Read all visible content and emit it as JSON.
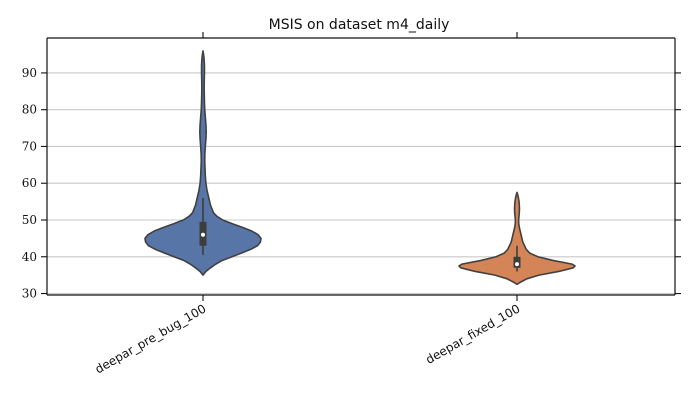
{
  "chart_data": {
    "type": "violin",
    "title": "MSIS on dataset m4_daily",
    "xlabel": "",
    "ylabel": "",
    "ylim": [
      29.6,
      99.5
    ],
    "yticks": [
      30,
      40,
      50,
      60,
      70,
      80,
      90
    ],
    "grid": "horizontal",
    "categories": [
      "deepar_pre_bug_100",
      "deepar_fixed_100"
    ],
    "series": [
      {
        "category": "deepar_pre_bug_100",
        "color": "#5875a8",
        "edge_color": "#404040",
        "range": [
          35,
          96
        ],
        "whisker": [
          40.5,
          56
        ],
        "box": [
          43,
          49.5
        ],
        "median": 46,
        "density": [
          [
            35,
            0.0
          ],
          [
            36,
            0.05
          ],
          [
            37,
            0.13
          ],
          [
            38,
            0.22
          ],
          [
            39,
            0.33
          ],
          [
            40,
            0.5
          ],
          [
            41,
            0.66
          ],
          [
            42,
            0.82
          ],
          [
            43,
            0.94
          ],
          [
            44,
            0.99
          ],
          [
            45,
            1.0
          ],
          [
            46,
            0.95
          ],
          [
            47,
            0.84
          ],
          [
            48,
            0.68
          ],
          [
            49,
            0.5
          ],
          [
            50,
            0.34
          ],
          [
            51,
            0.24
          ],
          [
            52,
            0.18
          ],
          [
            54,
            0.13
          ],
          [
            56,
            0.1
          ],
          [
            58,
            0.07
          ],
          [
            60,
            0.05
          ],
          [
            62,
            0.04
          ],
          [
            64,
            0.035
          ],
          [
            66,
            0.03
          ],
          [
            68,
            0.032
          ],
          [
            70,
            0.04
          ],
          [
            72,
            0.05
          ],
          [
            74,
            0.055
          ],
          [
            76,
            0.05
          ],
          [
            78,
            0.04
          ],
          [
            80,
            0.03
          ],
          [
            82,
            0.025
          ],
          [
            84,
            0.022
          ],
          [
            86,
            0.02
          ],
          [
            88,
            0.022
          ],
          [
            90,
            0.025
          ],
          [
            92,
            0.025
          ],
          [
            94,
            0.018
          ],
          [
            95,
            0.01
          ],
          [
            96,
            0.0
          ]
        ]
      },
      {
        "category": "deepar_fixed_100",
        "color": "#d38557",
        "edge_color": "#404040",
        "range": [
          32.5,
          57.5
        ],
        "whisker": [
          36,
          43
        ],
        "box": [
          37,
          40
        ],
        "median": 38,
        "density": [
          [
            32.5,
            0.0
          ],
          [
            33,
            0.05
          ],
          [
            34,
            0.17
          ],
          [
            35,
            0.38
          ],
          [
            36,
            0.72
          ],
          [
            37,
            0.97
          ],
          [
            37.5,
            1.0
          ],
          [
            38,
            0.95
          ],
          [
            39,
            0.62
          ],
          [
            40,
            0.36
          ],
          [
            41,
            0.22
          ],
          [
            42,
            0.16
          ],
          [
            43,
            0.13
          ],
          [
            44,
            0.1
          ],
          [
            45,
            0.085
          ],
          [
            46,
            0.07
          ],
          [
            47,
            0.055
          ],
          [
            48,
            0.04
          ],
          [
            49,
            0.03
          ],
          [
            50,
            0.028
          ],
          [
            51,
            0.034
          ],
          [
            52,
            0.04
          ],
          [
            53,
            0.042
          ],
          [
            54,
            0.04
          ],
          [
            55,
            0.035
          ],
          [
            56,
            0.025
          ],
          [
            57,
            0.01
          ],
          [
            57.5,
            0.0
          ]
        ]
      }
    ]
  }
}
